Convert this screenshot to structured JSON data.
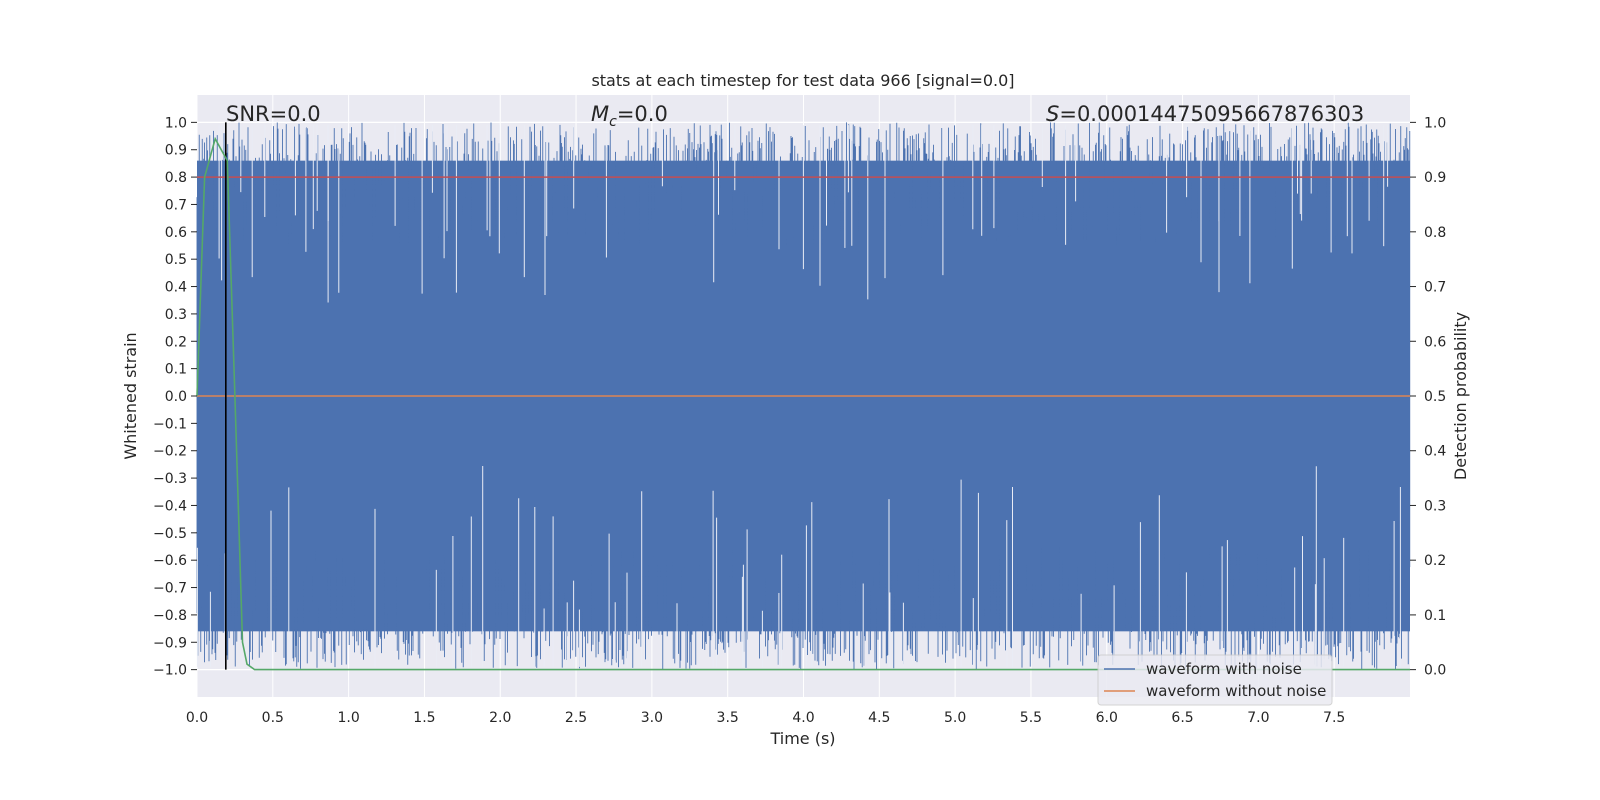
{
  "chart_data": {
    "type": "line",
    "title": "stats at each timestep for test data 966 [signal=0.0]",
    "xlabel": "Time (s)",
    "ylabel": "Whitened strain",
    "ylabel_right": "Detection probability",
    "xlim": [
      0.0,
      8.0
    ],
    "ylim": [
      -1.1,
      1.1
    ],
    "ylim_right": [
      -0.05,
      1.05
    ],
    "x_ticks": [
      "0.0",
      "0.5",
      "1.0",
      "1.5",
      "2.0",
      "2.5",
      "3.0",
      "3.5",
      "4.0",
      "4.5",
      "5.0",
      "5.5",
      "6.0",
      "6.5",
      "7.0",
      "7.5"
    ],
    "y_ticks": [
      "1.0",
      "0.9",
      "0.8",
      "0.7",
      "0.6",
      "0.5",
      "0.4",
      "0.3",
      "0.2",
      "0.1",
      "0.0",
      "−0.1",
      "−0.2",
      "−0.3",
      "−0.4",
      "−0.5",
      "−0.6",
      "−0.7",
      "−0.8",
      "−0.9",
      "−1.0"
    ],
    "y_right_ticks": [
      "1.0",
      "0.9",
      "0.8",
      "0.7",
      "0.6",
      "0.5",
      "0.4",
      "0.3",
      "0.2",
      "0.1",
      "0.0"
    ],
    "grid": true,
    "annotations": {
      "snr": "SNR=0.0",
      "mc_symbol": "M",
      "mc_sub": "c",
      "mc_value": "=0.0",
      "s_symbol": "S",
      "s_value": "=0.00014475095667876303"
    },
    "legend": {
      "position": "bottom-right",
      "entries": [
        "waveform with noise",
        "waveform without noise"
      ]
    },
    "series": [
      {
        "name": "waveform with noise",
        "color": "#4c72b0",
        "description": "whitened noise filling approximately -1.0 to 1.0 over 0 to 8 s"
      },
      {
        "name": "waveform without noise",
        "color": "#dd8452",
        "x": [
          0.0,
          8.0
        ],
        "y": [
          0.0,
          0.0
        ]
      },
      {
        "name": "detection probability",
        "color": "#55a868",
        "axis": "right",
        "x": [
          0.0,
          0.05,
          0.12,
          0.2,
          0.25,
          0.3,
          0.33,
          0.38,
          8.0
        ],
        "y": [
          0.5,
          0.9,
          0.97,
          0.93,
          0.5,
          0.05,
          0.01,
          0.0,
          0.0
        ]
      },
      {
        "name": "threshold",
        "color": "#c44e52",
        "axis": "right",
        "x": [
          0.0,
          8.0
        ],
        "y": [
          0.9,
          0.9
        ]
      },
      {
        "name": "marker",
        "color": "#000000",
        "type": "vline",
        "x": 0.19
      }
    ],
    "colors": {
      "background": "#eaeaf2",
      "grid": "#ffffff",
      "text": "#262626"
    }
  }
}
